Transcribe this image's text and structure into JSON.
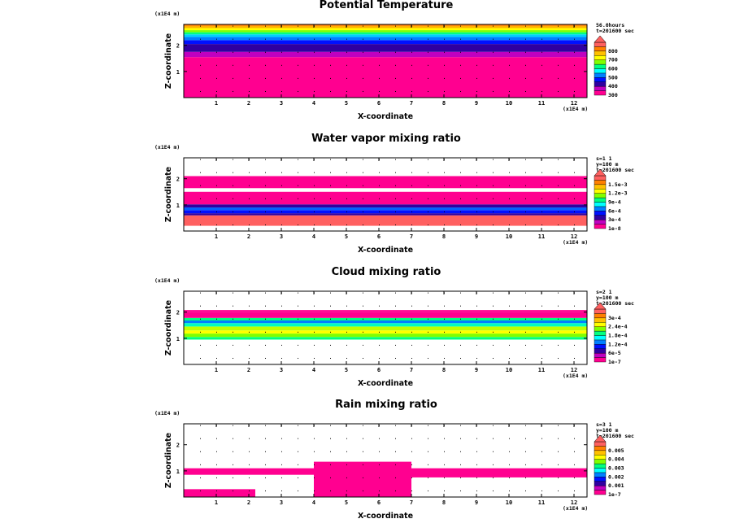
{
  "chart_data": [
    {
      "type": "heatmap",
      "title": "Potential Temperature",
      "xlabel": "X-coordinate",
      "ylabel": "Z-coordinate",
      "x_unit": "(x1E4 m)",
      "z_unit": "(x1E4 m)",
      "xlim": [
        0,
        12.4
      ],
      "ylim": [
        0,
        2.8
      ],
      "x_ticks": [
        "1",
        "2",
        "3",
        "4",
        "5",
        "6",
        "7",
        "8",
        "9",
        "10",
        "11",
        "12"
      ],
      "z_ticks": [
        "1",
        "2"
      ],
      "info": [
        "56.0hours",
        "t=201600 sec"
      ],
      "colorbar": {
        "labels": [
          "300",
          "400",
          "500",
          "600",
          "700",
          "800"
        ],
        "colors": [
          "#ff0090",
          "#c000c0",
          "#3000a0",
          "#0010ff",
          "#0080ff",
          "#00ffff",
          "#00ff80",
          "#80ff00",
          "#ffff00",
          "#ffc000",
          "#ff8000",
          "#ff6060"
        ]
      },
      "layers": [
        {
          "z0": 0,
          "z1": 1.55,
          "color": "#ff0090"
        },
        {
          "z0": 1.55,
          "z1": 1.75,
          "color": "#c000c0"
        },
        {
          "z0": 1.75,
          "z1": 2.05,
          "color": "#3000a0"
        },
        {
          "z0": 2.05,
          "z1": 2.2,
          "color": "#0010ff"
        },
        {
          "z0": 2.2,
          "z1": 2.32,
          "color": "#0080ff"
        },
        {
          "z0": 2.32,
          "z1": 2.42,
          "color": "#00d0ff"
        },
        {
          "z0": 2.42,
          "z1": 2.5,
          "color": "#00ff80"
        },
        {
          "z0": 2.5,
          "z1": 2.58,
          "color": "#80ff00"
        },
        {
          "z0": 2.58,
          "z1": 2.66,
          "color": "#ffff00"
        },
        {
          "z0": 2.66,
          "z1": 2.74,
          "color": "#ffb000"
        },
        {
          "z0": 2.74,
          "z1": 2.8,
          "color": "#ff8000"
        }
      ]
    },
    {
      "type": "heatmap",
      "title": "Water vapor mixing ratio",
      "xlabel": "X-coordinate",
      "ylabel": "Z-coordinate",
      "x_unit": "(x1E4 m)",
      "z_unit": "(x1E4 m)",
      "xlim": [
        0,
        12.4
      ],
      "ylim": [
        0,
        2.8
      ],
      "x_ticks": [
        "1",
        "2",
        "3",
        "4",
        "5",
        "6",
        "7",
        "8",
        "9",
        "10",
        "11",
        "12"
      ],
      "z_ticks": [
        "1",
        "2"
      ],
      "info": [
        "s=1 1",
        "y=100 m",
        "t=201600 sec"
      ],
      "colorbar": {
        "labels": [
          "1e-8",
          "3e-4",
          "6e-4",
          "9e-4",
          "1.2e-3",
          "1.5e-3"
        ],
        "colors": [
          "#ff0090",
          "#c000c0",
          "#3000a0",
          "#0010ff",
          "#0080ff",
          "#00ffff",
          "#00ff80",
          "#80ff00",
          "#ffff00",
          "#ffc000",
          "#ff8000",
          "#ff6060"
        ]
      },
      "layers": [
        {
          "z0": 0.2,
          "z1": 0.6,
          "color": "#ff6060"
        },
        {
          "z0": 0.6,
          "z1": 0.68,
          "color": "#3000a0"
        },
        {
          "z0": 0.68,
          "z1": 0.8,
          "color": "#0010ff"
        },
        {
          "z0": 0.8,
          "z1": 0.9,
          "color": "#0060ff"
        },
        {
          "z0": 0.9,
          "z1": 1.02,
          "color": "#3000a0"
        },
        {
          "z0": 1.02,
          "z1": 1.5,
          "color": "#ff0090"
        },
        {
          "z0": 1.64,
          "z1": 2.1,
          "color": "#ff0090"
        }
      ]
    },
    {
      "type": "heatmap",
      "title": "Cloud mixing ratio",
      "xlabel": "X-coordinate",
      "ylabel": "Z-coordinate",
      "x_unit": "(x1E4 m)",
      "z_unit": "(x1E4 m)",
      "xlim": [
        0,
        12.4
      ],
      "ylim": [
        0,
        2.8
      ],
      "x_ticks": [
        "1",
        "2",
        "3",
        "4",
        "5",
        "6",
        "7",
        "8",
        "9",
        "10",
        "11",
        "12"
      ],
      "z_ticks": [
        "1",
        "2"
      ],
      "info": [
        "s=2 1",
        "y=100 m",
        "t=201600 sec"
      ],
      "colorbar": {
        "labels": [
          "1e-7",
          "6e-5",
          "1.2e-4",
          "1.8e-4",
          "2.4e-4",
          "3e-4"
        ],
        "colors": [
          "#ff0090",
          "#c000c0",
          "#3000a0",
          "#0010ff",
          "#0080ff",
          "#00ffff",
          "#00ff80",
          "#80ff00",
          "#ffff00",
          "#ffc000",
          "#ff8000",
          "#ff6060"
        ]
      },
      "layers": [
        {
          "z0": 0.95,
          "z1": 1.05,
          "color": "#00ff80"
        },
        {
          "z0": 1.05,
          "z1": 1.18,
          "color": "#80ff00"
        },
        {
          "z0": 1.18,
          "z1": 1.3,
          "color": "#ffff00"
        },
        {
          "z0": 1.3,
          "z1": 1.45,
          "color": "#c0ff00"
        },
        {
          "z0": 1.45,
          "z1": 1.58,
          "color": "#00ffc0"
        },
        {
          "z0": 1.58,
          "z1": 1.68,
          "color": "#0080ff"
        },
        {
          "z0": 1.68,
          "z1": 1.78,
          "color": "#00ff80"
        },
        {
          "z0": 1.78,
          "z1": 2.0,
          "color": "#ff0090"
        },
        {
          "z0": 2.0,
          "z1": 2.08,
          "color": "#ff0090"
        }
      ]
    },
    {
      "type": "heatmap",
      "title": "Rain mixing ratio",
      "xlabel": "X-coordinate",
      "ylabel": "Z-coordinate",
      "x_unit": "(x1E4 m)",
      "z_unit": "(x1E4 m)",
      "xlim": [
        0,
        12.4
      ],
      "ylim": [
        0,
        2.8
      ],
      "x_ticks": [
        "1",
        "2",
        "3",
        "4",
        "5",
        "6",
        "7",
        "8",
        "9",
        "10",
        "11",
        "12"
      ],
      "z_ticks": [
        "1",
        "2"
      ],
      "info": [
        "s=3 1",
        "y=100 m",
        "t=201600 sec"
      ],
      "colorbar": {
        "labels": [
          "1e-7",
          "0.001",
          "0.002",
          "0.003",
          "0.004",
          "0.005"
        ],
        "colors": [
          "#ff0090",
          "#c000c0",
          "#3000a0",
          "#0010ff",
          "#0080ff",
          "#00ffff",
          "#00ff80",
          "#80ff00",
          "#ffff00",
          "#ffc000",
          "#ff8000",
          "#ff6060"
        ]
      },
      "layers": [
        {
          "z0": 0.85,
          "z1": 1.1,
          "x0": 0,
          "x1": 4.0,
          "color": "#ff0090"
        },
        {
          "z0": 0.0,
          "z1": 1.35,
          "x0": 4.0,
          "x1": 7.0,
          "color": "#ff0090"
        },
        {
          "z0": 0.75,
          "z1": 1.1,
          "x0": 7.0,
          "x1": 12.4,
          "color": "#ff0090"
        },
        {
          "z0": 0.0,
          "z1": 0.3,
          "x0": 0,
          "x1": 2.2,
          "color": "#ff0090"
        }
      ]
    }
  ]
}
